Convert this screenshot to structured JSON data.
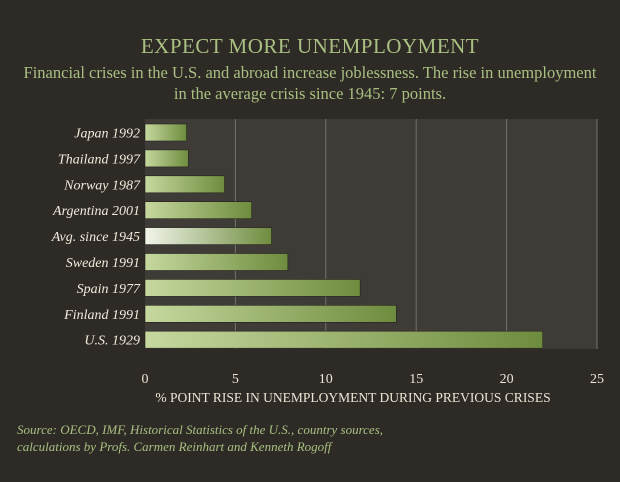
{
  "chart_data": {
    "type": "bar",
    "orientation": "horizontal",
    "title": "EXPECT MORE UNEMPLOYMENT",
    "subtitle": "Financial crises in the U.S. and abroad increase joblessness. The rise in unemployment in the average crisis since 1945: 7 points.",
    "categories": [
      "Japan 1992",
      "Thailand 1997",
      "Norway 1987",
      "Argentina 2001",
      "Avg. since 1945",
      "Sweden 1991",
      "Spain 1977",
      "Finland 1991",
      "U.S. 1929"
    ],
    "values": [
      2.3,
      2.4,
      4.4,
      5.9,
      7.0,
      7.9,
      11.9,
      13.9,
      22.0
    ],
    "highlight_category": "Avg. since 1945",
    "xlabel": "% POINT RISE IN UNEMPLOYMENT DURING PREVIOUS CRISES",
    "xlim": [
      0,
      25
    ],
    "xticks": [
      0,
      5,
      10,
      15,
      20,
      25
    ],
    "grid": true
  },
  "source_lines": [
    "Source: OECD, IMF, Historical Statistics of the U.S., country sources,",
    "calculations by Profs. Carmen Reinhart and Kenneth Rogoff"
  ],
  "colors": {
    "background": "#2e2a26",
    "plot_background": "#3f3c38",
    "bar_green_light": "#c6d89e",
    "bar_green_dark": "#6e8c3e",
    "highlight_light": "#f2f5ea",
    "text_green": "#a9c082",
    "label_text": "#f1ecdd",
    "axis_text": "#ece6d6"
  }
}
